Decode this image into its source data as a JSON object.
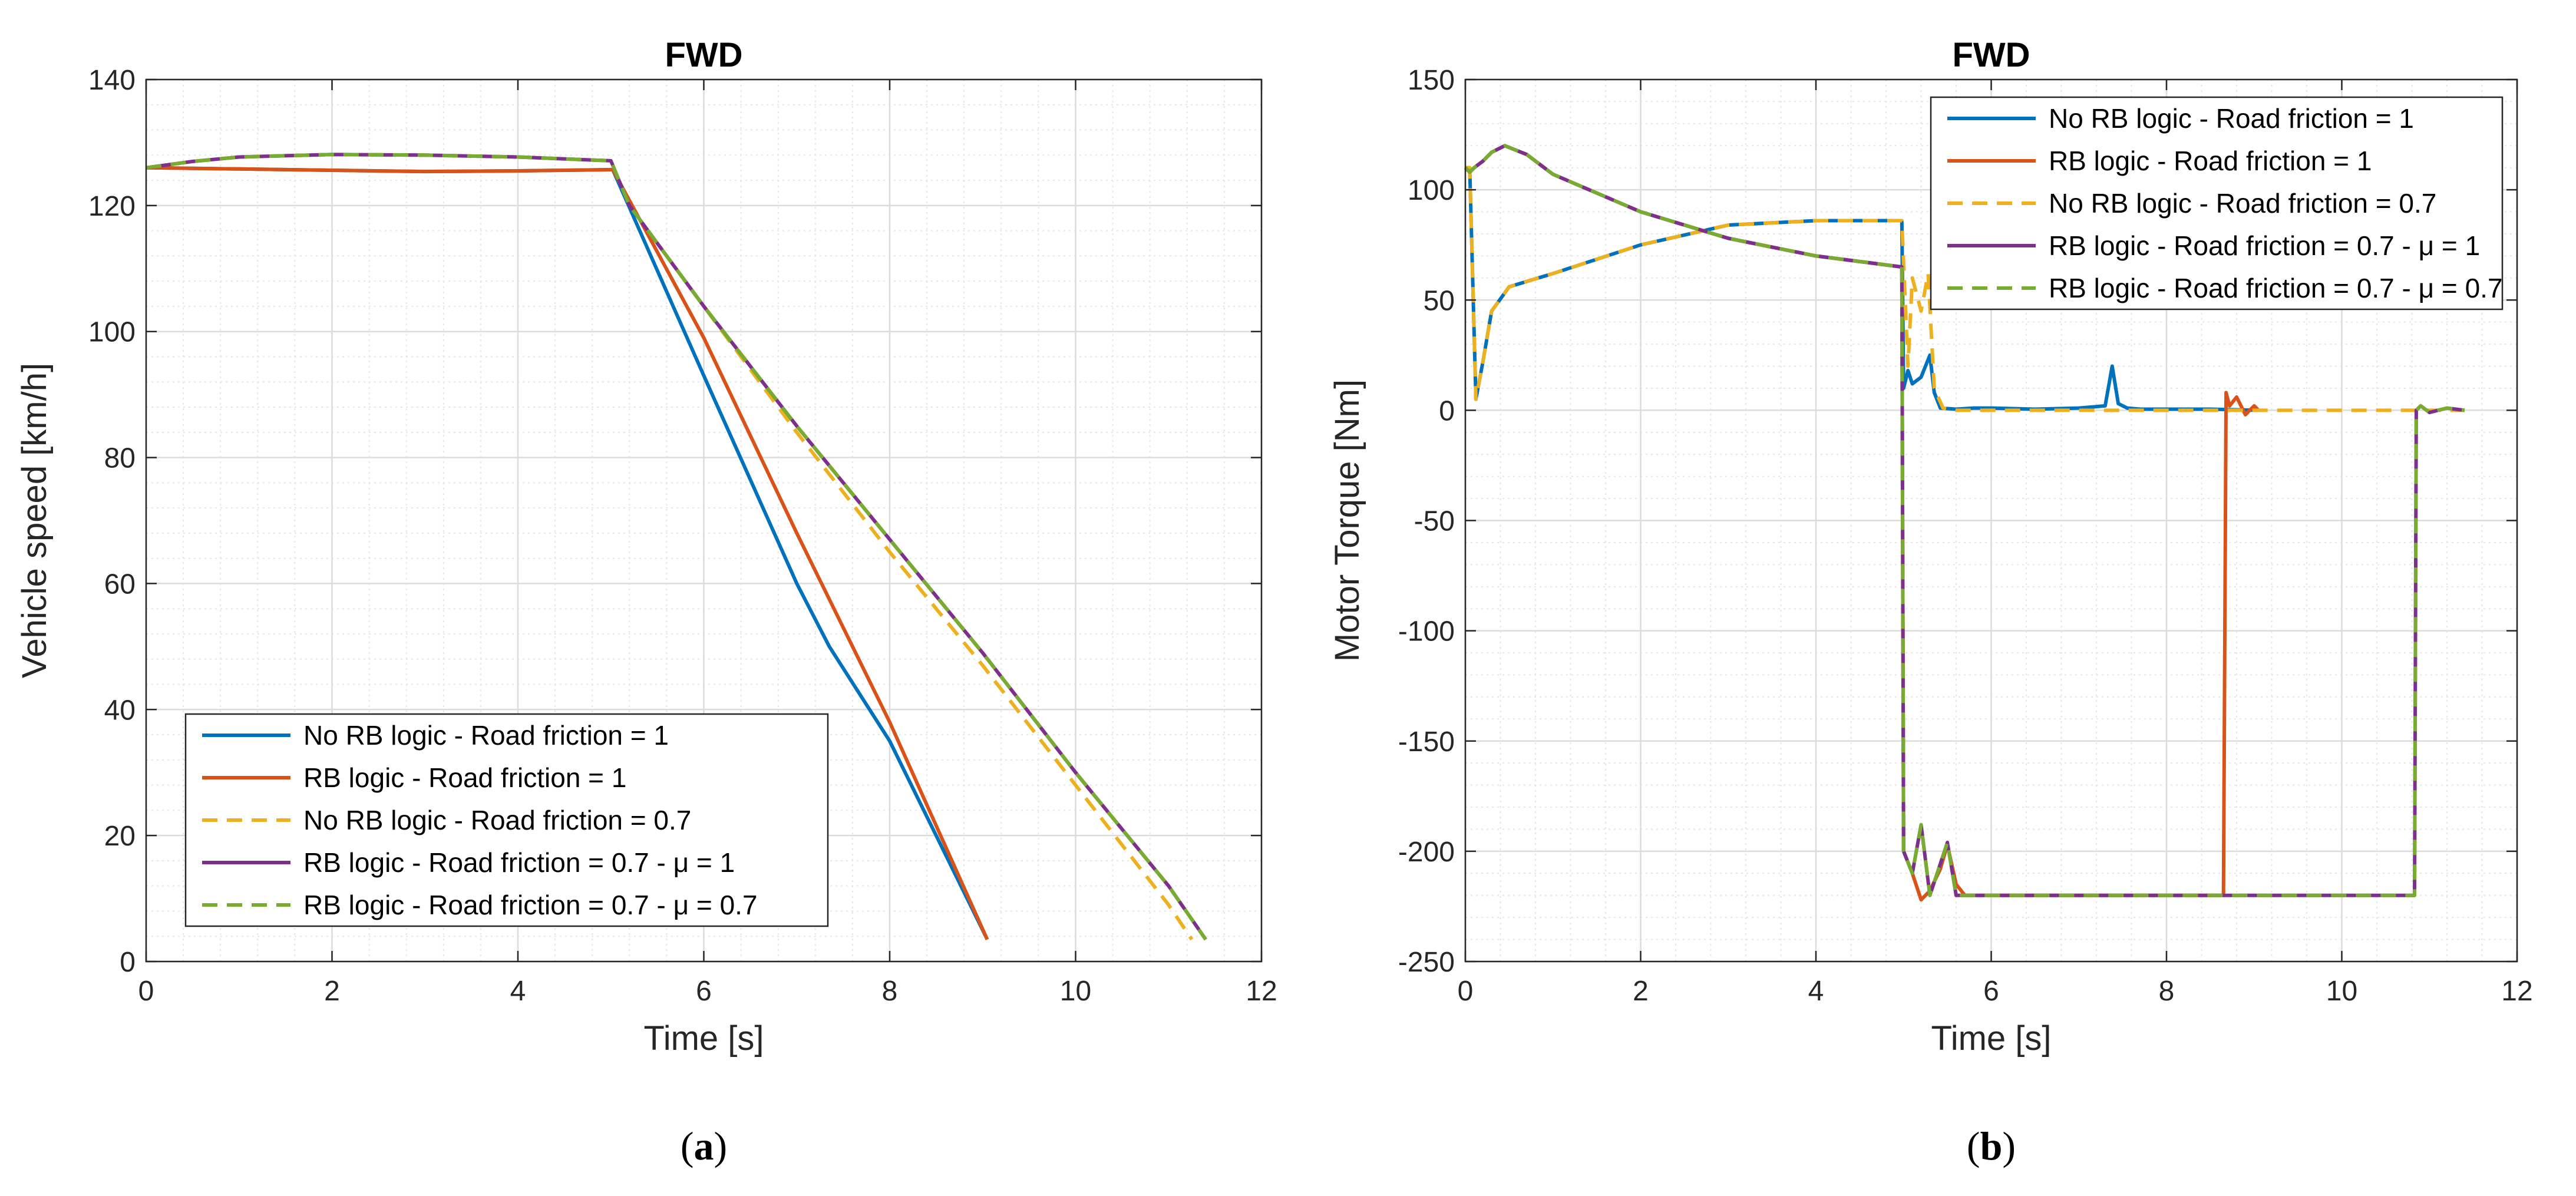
{
  "chart_data": [
    {
      "type": "line",
      "panel_id": "a",
      "title": "FWD",
      "xlabel": "Time [s]",
      "ylabel": "Vehicle speed [km/h]",
      "xlim": [
        0,
        12
      ],
      "ylim": [
        0,
        140
      ],
      "xticks": [
        0,
        2,
        4,
        6,
        8,
        10,
        12
      ],
      "yticks": [
        0,
        20,
        40,
        60,
        80,
        100,
        120,
        140
      ],
      "grid": true,
      "minor_grid": true,
      "legend_position": "bottom-left",
      "caption_letter": "a",
      "series": [
        {
          "name": "No RB logic - Road friction = 1",
          "color": "#0072BD",
          "dash": "solid",
          "x": [
            0,
            1,
            2,
            3,
            4,
            5.02,
            6,
            7,
            7.35,
            8,
            9.05
          ],
          "y": [
            126,
            125.8,
            125.6,
            125.4,
            125.5,
            125.7,
            93,
            60,
            50,
            35,
            3.5
          ]
        },
        {
          "name": "RB logic - Road friction = 1",
          "color": "#D95319",
          "dash": "solid",
          "x": [
            0,
            1,
            2,
            3,
            4,
            5.02,
            6,
            7,
            8,
            9.05
          ],
          "y": [
            126,
            125.8,
            125.6,
            125.4,
            125.5,
            125.7,
            99,
            68,
            38,
            3.5
          ]
        },
        {
          "name": "No RB logic - Road friction = 0.7",
          "color": "#EDB120",
          "dash": "dashed",
          "x": [
            0,
            0.5,
            1,
            2,
            3,
            4,
            5,
            5.2,
            6,
            7,
            8,
            9,
            10,
            11,
            11.25
          ],
          "y": [
            126,
            127,
            127.7,
            128.1,
            128,
            127.7,
            127.1,
            120,
            104,
            84,
            65,
            47,
            28,
            9,
            3.5
          ]
        },
        {
          "name": "RB logic - Road friction = 0.7 - μ = 1",
          "color": "#7E2F8E",
          "dash": "solid",
          "x": [
            0,
            0.5,
            1,
            2,
            3,
            4,
            5,
            5.2,
            6,
            7,
            8,
            9,
            10,
            11,
            11.4
          ],
          "y": [
            126,
            127,
            127.7,
            128.1,
            128,
            127.7,
            127.1,
            120,
            104,
            85,
            67,
            49,
            30,
            12,
            3.5
          ]
        },
        {
          "name": "RB logic - Road friction = 0.7 - μ = 0.7",
          "color": "#77AC30",
          "dash": "dashed",
          "x": [
            0,
            0.5,
            1,
            2,
            3,
            4,
            5,
            5.2,
            6,
            7,
            8,
            9,
            10,
            11,
            11.4
          ],
          "y": [
            126,
            127,
            127.7,
            128.1,
            128,
            127.7,
            127.1,
            120,
            104,
            85,
            67,
            49,
            30,
            12,
            3.5
          ]
        }
      ]
    },
    {
      "type": "line",
      "panel_id": "b",
      "title": "FWD",
      "xlabel": "Time [s]",
      "ylabel": "Motor Torque [Nm]",
      "xlim": [
        0,
        12
      ],
      "ylim": [
        -250,
        150
      ],
      "xticks": [
        0,
        2,
        4,
        6,
        8,
        10,
        12
      ],
      "yticks": [
        -250,
        -200,
        -150,
        -100,
        -50,
        0,
        50,
        100,
        150
      ],
      "grid": true,
      "minor_grid": true,
      "legend_position": "top-right",
      "caption_letter": "b",
      "series": [
        {
          "name": "No RB logic - Road friction = 1",
          "color": "#0072BD",
          "dash": "solid",
          "x": [
            0,
            0.05,
            0.12,
            0.2,
            0.3,
            0.5,
            1,
            2,
            3,
            4,
            4.98,
            5.0,
            5.05,
            5.1,
            5.2,
            5.3,
            5.35,
            5.42,
            5.6,
            5.8,
            6,
            6.5,
            7,
            7.3,
            7.38,
            7.45,
            7.55,
            7.7,
            8,
            8.5,
            9.05
          ],
          "y": [
            110,
            110,
            5,
            22,
            45,
            56,
            62,
            75,
            84,
            86,
            86,
            10,
            18,
            12,
            15,
            25,
            8,
            1,
            0.5,
            1,
            1,
            0.5,
            1,
            2,
            20,
            3,
            1,
            0.5,
            0.5,
            0.5,
            0
          ]
        },
        {
          "name": "RB logic - Road friction = 1",
          "color": "#D95319",
          "dash": "solid",
          "x": [
            0,
            0.05,
            0.1,
            0.2,
            0.3,
            0.45,
            0.7,
            1,
            2,
            3,
            4,
            4.98,
            5.0,
            5.1,
            5.2,
            5.3,
            5.42,
            5.5,
            5.6,
            5.7,
            5.8,
            6,
            7,
            8,
            8.65,
            8.68,
            8.72,
            8.8,
            8.9,
            9.0,
            9.05
          ],
          "y": [
            110,
            108,
            110,
            113,
            117,
            120,
            116,
            107,
            90,
            78,
            70,
            65,
            -200,
            -210,
            -222,
            -218,
            -208,
            -197,
            -215,
            -220,
            -220,
            -220,
            -220,
            -220,
            -220,
            8,
            2,
            6,
            -2,
            2,
            0
          ]
        },
        {
          "name": "No RB logic - Road friction = 0.7",
          "color": "#EDB120",
          "dash": "dashed",
          "x": [
            0,
            0.05,
            0.12,
            0.2,
            0.3,
            0.5,
            1,
            2,
            3,
            4,
            4.98,
            5.05,
            5.1,
            5.2,
            5.28,
            5.35,
            5.45,
            5.6,
            6,
            7,
            8,
            9,
            10,
            11,
            11.4
          ],
          "y": [
            110,
            110,
            5,
            22,
            45,
            56,
            62,
            75,
            84,
            86,
            86,
            20,
            60,
            45,
            62,
            10,
            1,
            0,
            0,
            0,
            0,
            0,
            0,
            0,
            0
          ]
        },
        {
          "name": "RB logic - Road friction = 0.7 - μ = 1",
          "color": "#7E2F8E",
          "dash": "solid",
          "x": [
            0,
            0.05,
            0.1,
            0.2,
            0.3,
            0.45,
            0.7,
            1,
            2,
            3,
            4,
            4.98,
            5.0,
            5.1,
            5.2,
            5.3,
            5.4,
            5.5,
            5.6,
            5.8,
            6,
            8,
            10,
            10.83,
            10.85,
            10.9,
            11,
            11.2,
            11.4
          ],
          "y": [
            110,
            108,
            110,
            113,
            117,
            120,
            116,
            107,
            90,
            78,
            70,
            65,
            -200,
            -210,
            -188,
            -220,
            -208,
            -196,
            -220,
            -220,
            -220,
            -220,
            -220,
            -220,
            0,
            2,
            -1,
            1,
            0
          ]
        },
        {
          "name": "RB logic - Road friction = 0.7 - μ = 0.7",
          "color": "#77AC30",
          "dash": "dashed",
          "x": [
            0,
            0.05,
            0.1,
            0.2,
            0.3,
            0.45,
            0.7,
            1,
            2,
            3,
            4,
            4.98,
            5.0,
            5.1,
            5.2,
            5.3,
            5.4,
            5.5,
            5.6,
            5.8,
            6,
            8,
            10,
            10.83,
            10.85,
            10.9,
            11,
            11.2,
            11.4
          ],
          "y": [
            110,
            108,
            110,
            113,
            117,
            120,
            116,
            107,
            90,
            78,
            70,
            65,
            -200,
            -210,
            -188,
            -220,
            -208,
            -196,
            -220,
            -220,
            -220,
            -220,
            -220,
            -220,
            0,
            2,
            -1,
            1,
            0
          ]
        }
      ]
    }
  ]
}
